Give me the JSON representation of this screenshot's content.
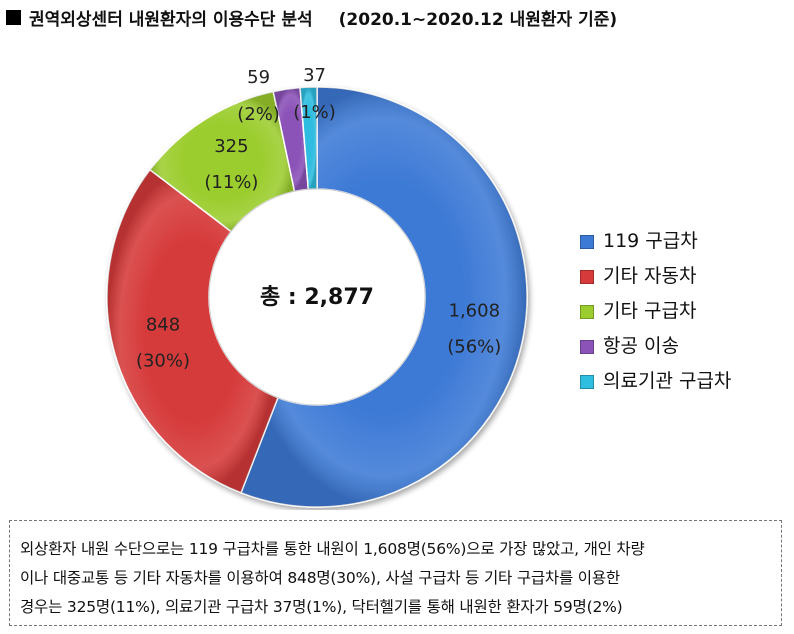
{
  "title": {
    "main": "권역외상센터 내원환자의 이용수단 분석",
    "sub": "(2020.1~2020.12 내원환자 기준)"
  },
  "chart_data": {
    "type": "pie",
    "variant": "donut",
    "center_label": "총 : 2,877",
    "slices": [
      {
        "label": "119 구급차",
        "value": 1608,
        "value_label": "1,608",
        "pct_label": "(56%)",
        "color": "#3d7ad6"
      },
      {
        "label": "기타 자동차",
        "value": 848,
        "value_label": "848",
        "pct_label": "(30%)",
        "color": "#d63a3a"
      },
      {
        "label": "기타 구급차",
        "value": 325,
        "value_label": "325",
        "pct_label": "(11%)",
        "color": "#9ccd2f"
      },
      {
        "label": "항공 이송",
        "value": 59,
        "value_label": "59",
        "pct_label": "(2%)",
        "color": "#8b52b8"
      },
      {
        "label": "의료기관 구급차",
        "value": 37,
        "value_label": "37",
        "pct_label": "(1%)",
        "color": "#2fbde0"
      }
    ],
    "legend_position": "right"
  },
  "caption": {
    "lines": [
      "외상환자 내원 수단으로는 119 구급차를 통한 내원이 1,608명(56%)으로 가장 많았고, 개인 차량",
      "이나 대중교통 등 기타 자동차를 이용하여 848명(30%), 사설 구급차 등 기타 구급차를 이용한",
      "경우는 325명(11%), 의료기관 구급차 37명(1%), 닥터헬기를 통해 내원한 환자가 59명(2%)"
    ]
  }
}
